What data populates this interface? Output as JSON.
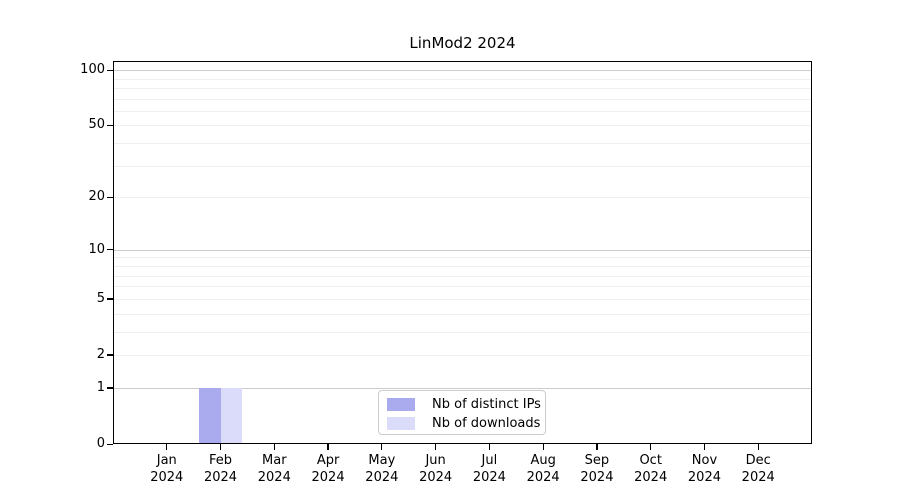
{
  "chart_data": {
    "type": "bar",
    "title": "LinMod2 2024",
    "x_categories": [
      {
        "month": "Jan",
        "year": "2024"
      },
      {
        "month": "Feb",
        "year": "2024"
      },
      {
        "month": "Mar",
        "year": "2024"
      },
      {
        "month": "Apr",
        "year": "2024"
      },
      {
        "month": "May",
        "year": "2024"
      },
      {
        "month": "Jun",
        "year": "2024"
      },
      {
        "month": "Jul",
        "year": "2024"
      },
      {
        "month": "Aug",
        "year": "2024"
      },
      {
        "month": "Sep",
        "year": "2024"
      },
      {
        "month": "Oct",
        "year": "2024"
      },
      {
        "month": "Nov",
        "year": "2024"
      },
      {
        "month": "Dec",
        "year": "2024"
      }
    ],
    "series": [
      {
        "name": "Nb of distinct IPs",
        "color": "#aaaaee",
        "values": [
          0,
          1,
          0,
          0,
          0,
          0,
          0,
          0,
          0,
          0,
          0,
          0
        ]
      },
      {
        "name": "Nb of downloads",
        "color": "#dbdbfa",
        "values": [
          0,
          1,
          0,
          0,
          0,
          0,
          0,
          0,
          0,
          0,
          0,
          0
        ]
      }
    ],
    "y_scale": "log10(value+1)",
    "ylim": [
      0,
      112
    ],
    "y_ticks": [
      0,
      1,
      2,
      5,
      10,
      20,
      50,
      100
    ],
    "y_major_gridlines": [
      1,
      10,
      100
    ],
    "y_minor_gridlines": [
      2,
      3,
      4,
      5,
      6,
      7,
      8,
      9,
      20,
      30,
      40,
      50,
      60,
      70,
      80,
      90
    ],
    "grid": "on",
    "legend_position": "lower center",
    "colors": {
      "major_grid": "#cccccc",
      "minor_grid": "#efefef",
      "axis": "#000000",
      "background": "#ffffff"
    },
    "bar_width_fraction": 0.4
  },
  "legend": {
    "items": [
      {
        "label": "Nb of distinct IPs"
      },
      {
        "label": "Nb of downloads"
      }
    ]
  }
}
